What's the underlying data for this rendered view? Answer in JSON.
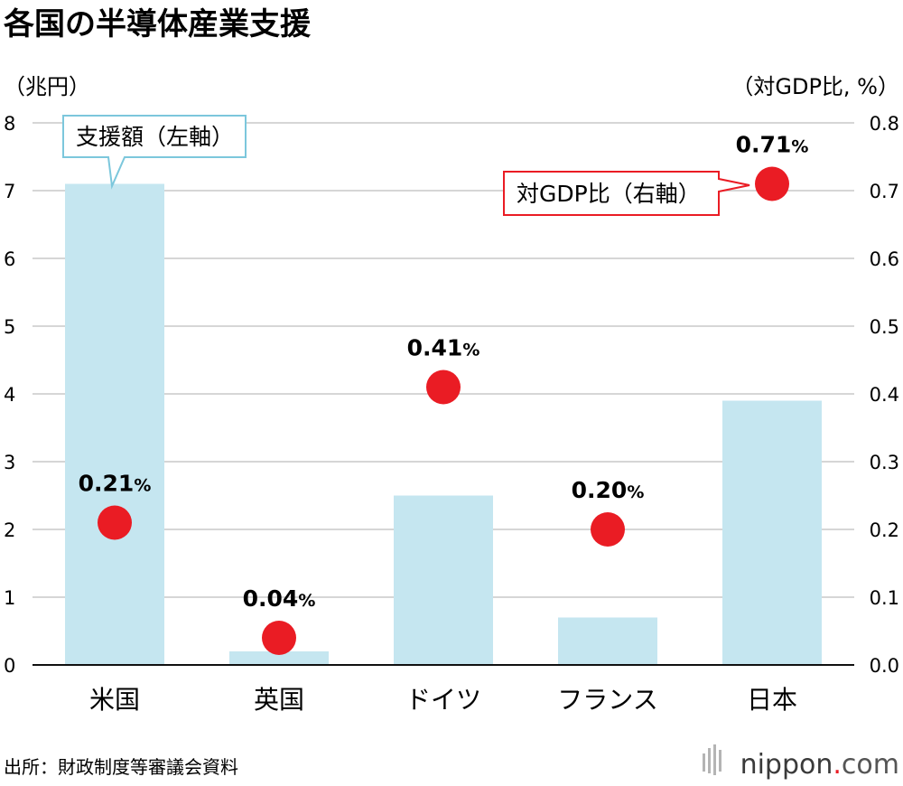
{
  "title": "各国の半導体産業支援",
  "source": "出所：財政制度等審議会資料",
  "brand": {
    "name": "nippon",
    "dot": ".",
    "suffix": "com"
  },
  "colors": {
    "bar": "#c5e6f0",
    "dot": "#ea1c24",
    "grid": "#c8c8c8",
    "callout_bar_border": "#7cc7dc",
    "callout_dot_border": "#ea1c24",
    "brand_dot": "#ea1c24"
  },
  "chart_data": {
    "type": "bar",
    "categories": [
      "米国",
      "英国",
      "ドイツ",
      "フランス",
      "日本"
    ],
    "series": [
      {
        "name": "支援額（左軸）",
        "axis": "left",
        "type": "bar",
        "values": [
          7.1,
          0.2,
          2.5,
          0.7,
          3.9
        ]
      },
      {
        "name": "対GDP比（右軸）",
        "axis": "right",
        "type": "scatter",
        "values": [
          0.21,
          0.04,
          0.41,
          0.2,
          0.71
        ]
      }
    ],
    "data_labels": [
      {
        "num": "0.21",
        "unit": "%"
      },
      {
        "num": "0.04",
        "unit": "%"
      },
      {
        "num": "0.41",
        "unit": "%"
      },
      {
        "num": "0.20",
        "unit": "%"
      },
      {
        "num": "0.71",
        "unit": "%"
      }
    ],
    "y_left": {
      "label": "（兆円）",
      "ylim": [
        0,
        8
      ],
      "ticks": [
        "0",
        "1",
        "2",
        "3",
        "4",
        "5",
        "6",
        "7",
        "8"
      ]
    },
    "y_right": {
      "label": "（対GDP比, %）",
      "ylim": [
        0,
        0.8
      ],
      "ticks": [
        "0.0",
        "0.1",
        "0.2",
        "0.3",
        "0.4",
        "0.5",
        "0.6",
        "0.7",
        "0.8"
      ]
    },
    "grid": true,
    "legend_placement": "callouts"
  }
}
